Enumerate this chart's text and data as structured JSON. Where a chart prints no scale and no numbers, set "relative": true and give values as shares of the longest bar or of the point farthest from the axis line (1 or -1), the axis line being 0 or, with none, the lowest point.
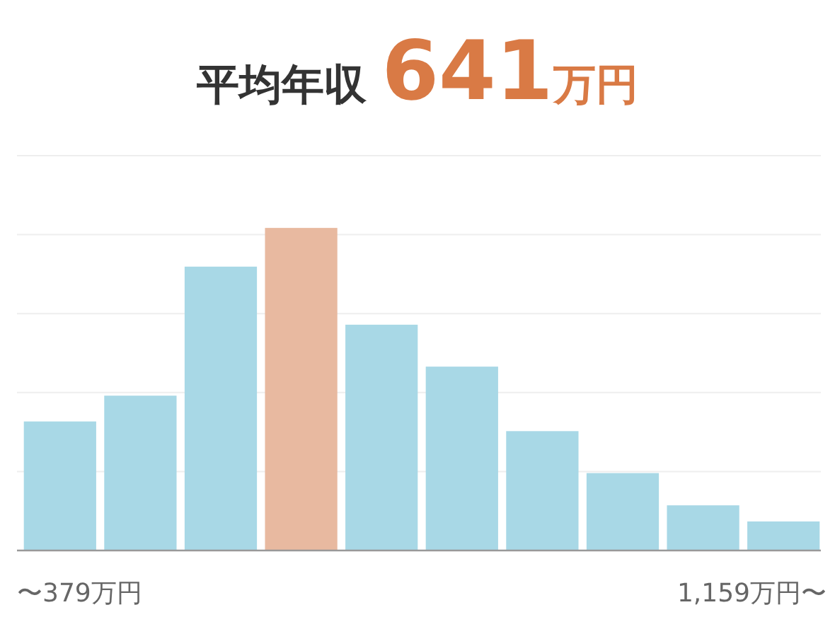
{
  "chart_data": {
    "type": "bar",
    "title": "平均年収 **641万円**",
    "relative": true,
    "grid": "y",
    "categories": [
      "〜379万円",
      null,
      null,
      null,
      null,
      null,
      null,
      null,
      null,
      "1,159万円〜"
    ],
    "values": [
      0.4,
      0.48,
      0.88,
      1,
      0.7,
      0.57,
      0.37,
      0.24,
      0.14,
      0.09
    ],
    "colors": [
      "#a8d8e6",
      "#a8d8e6",
      "#a8d8e6",
      "#e8b9a0",
      "#a8d8e6",
      "#a8d8e6",
      "#a8d8e6",
      "#a8d8e6",
      "#a8d8e6",
      "#a8d8e6"
    ]
  }
}
